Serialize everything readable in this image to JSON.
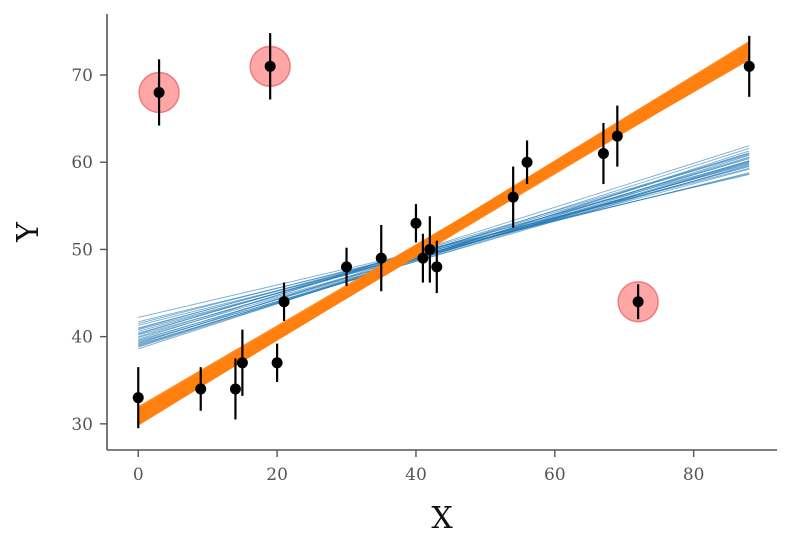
{
  "chart_data": {
    "type": "scatter",
    "title": "",
    "xlabel": "X",
    "ylabel": "Y",
    "xlim": [
      -4.5,
      92
    ],
    "ylim": [
      27,
      77
    ],
    "x_ticks": [
      0,
      20,
      40,
      60,
      80
    ],
    "y_ticks": [
      30,
      40,
      50,
      60,
      70
    ],
    "grid": false,
    "points": [
      {
        "x": 0,
        "y": 33,
        "err": 3.5,
        "outlier": false
      },
      {
        "x": 3,
        "y": 68,
        "err": 3.8,
        "outlier": true
      },
      {
        "x": 9,
        "y": 34,
        "err": 2.5,
        "outlier": false
      },
      {
        "x": 14,
        "y": 34,
        "err": 3.5,
        "outlier": false
      },
      {
        "x": 15,
        "y": 37,
        "err": 3.8,
        "outlier": false
      },
      {
        "x": 19,
        "y": 71,
        "err": 3.8,
        "outlier": true
      },
      {
        "x": 20,
        "y": 37,
        "err": 2.2,
        "outlier": false
      },
      {
        "x": 21,
        "y": 44,
        "err": 2.2,
        "outlier": false
      },
      {
        "x": 30,
        "y": 48,
        "err": 2.2,
        "outlier": false
      },
      {
        "x": 35,
        "y": 49,
        "err": 3.8,
        "outlier": false
      },
      {
        "x": 40,
        "y": 53,
        "err": 2.2,
        "outlier": false
      },
      {
        "x": 41,
        "y": 49,
        "err": 2.8,
        "outlier": false
      },
      {
        "x": 42,
        "y": 50,
        "err": 3.8,
        "outlier": false
      },
      {
        "x": 43,
        "y": 48,
        "err": 3.0,
        "outlier": false
      },
      {
        "x": 54,
        "y": 56,
        "err": 3.5,
        "outlier": false
      },
      {
        "x": 56,
        "y": 60,
        "err": 2.5,
        "outlier": false
      },
      {
        "x": 67,
        "y": 61,
        "err": 3.5,
        "outlier": false
      },
      {
        "x": 69,
        "y": 63,
        "err": 3.5,
        "outlier": false
      },
      {
        "x": 72,
        "y": 44,
        "err": 2.0,
        "outlier": true
      },
      {
        "x": 88,
        "y": 71,
        "err": 3.5,
        "outlier": false
      }
    ],
    "series": [
      {
        "kind": "posterior-lines",
        "color": "#1f77b4",
        "x_range": [
          0,
          88
        ],
        "lines": [
          [
            39.0,
            60.5
          ],
          [
            39.3,
            60.2
          ],
          [
            38.8,
            60.8
          ],
          [
            40.2,
            59.6
          ],
          [
            39.6,
            60.0
          ],
          [
            40.8,
            59.2
          ],
          [
            38.9,
            61.1
          ],
          [
            41.3,
            58.8
          ],
          [
            39.9,
            59.9
          ],
          [
            40.4,
            60.4
          ],
          [
            39.2,
            61.6
          ],
          [
            41.7,
            58.7
          ],
          [
            40.0,
            60.9
          ],
          [
            38.6,
            61.3
          ],
          [
            41.0,
            59.5
          ],
          [
            39.5,
            60.6
          ],
          [
            40.6,
            59.8
          ],
          [
            42.2,
            58.6
          ],
          [
            39.7,
            61.9
          ],
          [
            40.9,
            60.1
          ],
          [
            39.1,
            60.1
          ],
          [
            41.5,
            59.3
          ],
          [
            40.3,
            61.0
          ],
          [
            39.4,
            59.7
          ]
        ]
      },
      {
        "kind": "posterior-lines",
        "color": "#ff7f0e",
        "x_range": [
          0,
          88
        ],
        "lines": [
          [
            30.2,
            72.6
          ],
          [
            30.6,
            72.3
          ],
          [
            31.0,
            72.9
          ],
          [
            30.4,
            73.2
          ],
          [
            31.3,
            72.0
          ],
          [
            30.0,
            73.0
          ],
          [
            30.8,
            73.5
          ],
          [
            31.6,
            72.4
          ],
          [
            30.5,
            72.8
          ],
          [
            31.1,
            73.3
          ],
          [
            30.3,
            72.1
          ],
          [
            31.8,
            72.7
          ],
          [
            30.7,
            73.7
          ],
          [
            31.4,
            71.9
          ],
          [
            30.1,
            72.5
          ]
        ]
      }
    ],
    "colors": {
      "points": "#000000",
      "outlier_marker": "#ff6b6b",
      "axis": "#555555"
    }
  }
}
